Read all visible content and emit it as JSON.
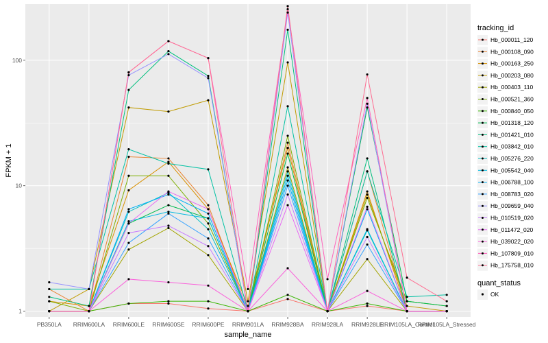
{
  "chart_data": {
    "type": "line",
    "xlabel": "sample_name",
    "ylabel": "FPKM + 1",
    "y_scale": "log10",
    "ylim": [
      0.9,
      280
    ],
    "y_ticks": [
      {
        "value": 1,
        "label": "1"
      },
      {
        "value": 10,
        "label": "10"
      },
      {
        "value": 100,
        "label": "100"
      }
    ],
    "categories": [
      "PB350LA",
      "RRIM600LA",
      "RRIM600LE",
      "RRIM600SE",
      "RRIM600PE",
      "RRIM901LA",
      "RRIM928BA",
      "RRIM928LA",
      "RRIM928LE",
      "RRIM105LA_Control",
      "RRIM105LA_Stressed"
    ],
    "grid": true,
    "legend_position": "right",
    "legend": {
      "title": "tracking_id",
      "entries": [
        "Hb_000011_120",
        "Hb_000108_090",
        "Hb_000163_250",
        "Hb_000203_080",
        "Hb_000403_110",
        "Hb_000521_360",
        "Hb_000840_050",
        "Hb_001318_120",
        "Hb_001421_010",
        "Hb_003842_010",
        "Hb_005276_220",
        "Hb_005542_040",
        "Hb_006788_100",
        "Hb_008783_020",
        "Hb_009659_040",
        "Hb_010519_020",
        "Hb_011472_020",
        "Hb_039022_020",
        "Hb_107809_010",
        "Hb_175758_010"
      ]
    },
    "legend2": {
      "title": "quant_status",
      "entries": [
        "OK"
      ]
    },
    "series": [
      {
        "name": "Hb_000011_120",
        "color": "#F8766D",
        "values": [
          1.0,
          1.0,
          1.15,
          1.15,
          1.05,
          1.0,
          1.25,
          1.0,
          1.1,
          1.0,
          1.0
        ]
      },
      {
        "name": "Hb_000108_090",
        "color": "#EA8331",
        "values": [
          1.5,
          1.0,
          17.0,
          16.5,
          7.0,
          1.0,
          22.0,
          1.0,
          13.0,
          1.0,
          1.0
        ]
      },
      {
        "name": "Hb_000163_250",
        "color": "#D89000",
        "values": [
          1.2,
          1.1,
          9.2,
          15.5,
          6.5,
          1.1,
          20.0,
          1.0,
          9.0,
          1.0,
          1.0
        ]
      },
      {
        "name": "Hb_000203_080",
        "color": "#C09B00",
        "values": [
          1.0,
          1.5,
          42.0,
          39.0,
          48.0,
          1.2,
          96.0,
          1.0,
          8.5,
          1.1,
          1.0
        ]
      },
      {
        "name": "Hb_000403_110",
        "color": "#A3A500",
        "values": [
          1.0,
          1.0,
          3.1,
          4.6,
          2.8,
          1.0,
          14.0,
          1.0,
          2.6,
          1.0,
          1.0
        ]
      },
      {
        "name": "Hb_000521_360",
        "color": "#7CAE00",
        "values": [
          1.2,
          1.0,
          12.0,
          12.0,
          5.0,
          1.0,
          25.0,
          1.0,
          8.0,
          1.2,
          1.1
        ]
      },
      {
        "name": "Hb_000840_050",
        "color": "#39B600",
        "values": [
          1.0,
          1.0,
          1.15,
          1.2,
          1.2,
          1.0,
          1.35,
          1.0,
          1.15,
          1.0,
          1.0
        ]
      },
      {
        "name": "Hb_001318_120",
        "color": "#00BB4E",
        "values": [
          1.0,
          1.0,
          5.0,
          7.0,
          5.5,
          1.0,
          18.0,
          1.0,
          42.0,
          1.2,
          1.1
        ]
      },
      {
        "name": "Hb_001421_010",
        "color": "#00BF7D",
        "values": [
          1.3,
          1.1,
          58.0,
          118.0,
          75.0,
          1.0,
          175.0,
          1.0,
          16.5,
          1.0,
          1.0
        ]
      },
      {
        "name": "Hb_003842_010",
        "color": "#00C1A3",
        "values": [
          1.5,
          1.5,
          19.5,
          15.0,
          13.5,
          1.0,
          43.0,
          1.0,
          13.0,
          1.3,
          1.35
        ]
      },
      {
        "name": "Hb_005276_220",
        "color": "#00BFC4",
        "values": [
          1.0,
          1.0,
          6.2,
          8.8,
          4.5,
          1.0,
          13.0,
          1.0,
          4.4,
          1.0,
          1.0
        ]
      },
      {
        "name": "Hb_005542_040",
        "color": "#00BAE0",
        "values": [
          1.0,
          1.0,
          5.2,
          6.2,
          5.5,
          1.0,
          12.0,
          1.0,
          4.5,
          1.0,
          1.0
        ]
      },
      {
        "name": "Hb_006788_100",
        "color": "#00B0F6",
        "values": [
          1.0,
          1.0,
          6.5,
          8.5,
          6.0,
          1.0,
          11.0,
          1.0,
          6.5,
          1.0,
          1.0
        ]
      },
      {
        "name": "Hb_008783_020",
        "color": "#35A2FF",
        "values": [
          1.0,
          1.0,
          3.5,
          6.0,
          3.8,
          1.0,
          10.0,
          1.0,
          3.4,
          1.0,
          1.0
        ]
      },
      {
        "name": "Hb_009659_040",
        "color": "#9590FF",
        "values": [
          1.7,
          1.5,
          76.0,
          112.0,
          72.0,
          1.0,
          240.0,
          1.0,
          45.0,
          1.0,
          1.0
        ]
      },
      {
        "name": "Hb_010519_020",
        "color": "#C77CFF",
        "values": [
          1.0,
          1.0,
          4.2,
          4.8,
          3.3,
          1.0,
          8.5,
          1.0,
          3.9,
          1.0,
          1.0
        ]
      },
      {
        "name": "Hb_011472_020",
        "color": "#E76BF3",
        "values": [
          1.0,
          1.0,
          5.0,
          9.0,
          6.5,
          1.0,
          7.0,
          1.0,
          6.8,
          1.0,
          1.0
        ]
      },
      {
        "name": "Hb_039022_020",
        "color": "#FA62DB",
        "values": [
          1.0,
          1.0,
          1.8,
          1.7,
          1.6,
          1.0,
          2.2,
          1.0,
          1.45,
          1.0,
          1.0
        ]
      },
      {
        "name": "Hb_107809_010",
        "color": "#FF62BC",
        "values": [
          1.0,
          1.0,
          80.0,
          142.0,
          104.0,
          1.5,
          255.0,
          1.8,
          50.0,
          1.0,
          1.0
        ]
      },
      {
        "name": "Hb_175758_010",
        "color": "#FF6C91",
        "values": [
          1.0,
          1.0,
          80.0,
          142.0,
          104.0,
          1.0,
          270.0,
          1.0,
          77.0,
          1.85,
          1.2
        ]
      }
    ]
  }
}
